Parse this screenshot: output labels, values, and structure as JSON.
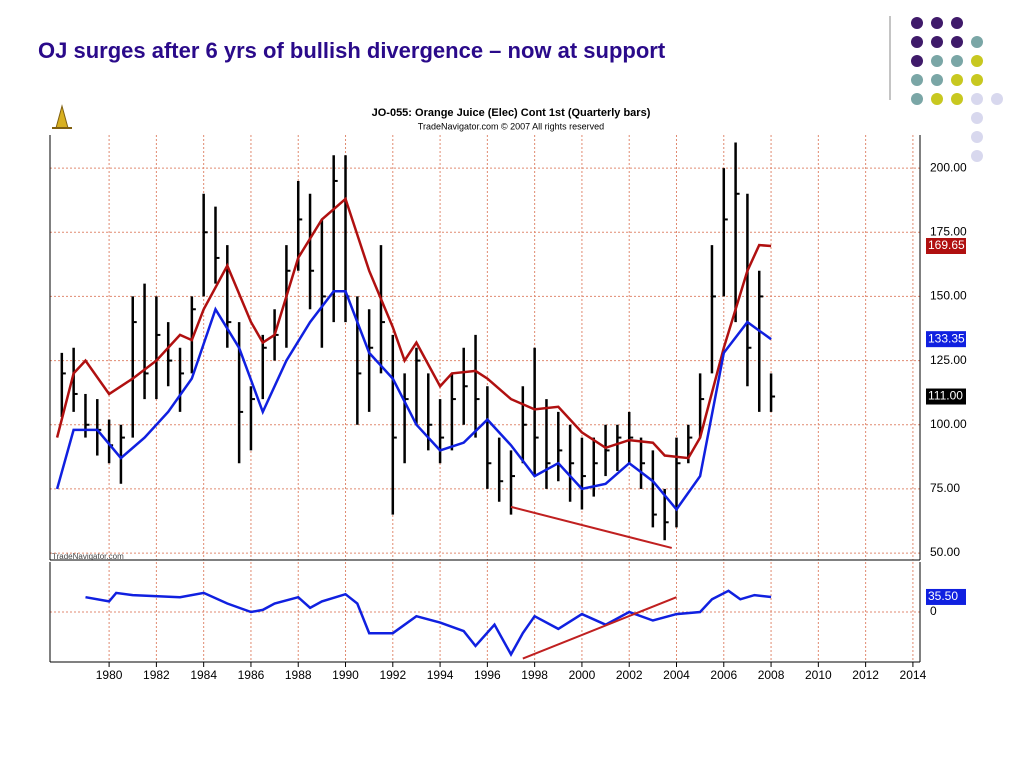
{
  "slide": {
    "title": "OJ surges after 6 yrs of bullish divergence – now at support"
  },
  "chart_data": [
    {
      "type": "ohlc",
      "title": "JO-055:  Orange Juice (Elec) Cont 1st  (Quarterly bars)",
      "subtitle": "TradeNavigator.com © 2007 All rights reserved",
      "watermark": "TradeNavigator.com",
      "xlim": [
        1977.5,
        2014.3
      ],
      "xticks": [
        1980,
        1982,
        1984,
        1986,
        1988,
        1990,
        1992,
        1994,
        1996,
        1998,
        2000,
        2002,
        2004,
        2006,
        2008,
        2010,
        2012,
        2014
      ],
      "ylim": [
        47.3,
        212.9
      ],
      "yticks": [
        {
          "value": 50,
          "label": "50.00"
        },
        {
          "value": 75,
          "label": "75.00"
        },
        {
          "value": 100,
          "label": "100.00"
        },
        {
          "value": 125,
          "label": "125.00"
        },
        {
          "value": 150,
          "label": "150.00"
        },
        {
          "value": 175,
          "label": "175.00"
        },
        {
          "value": 200,
          "label": "200.00"
        }
      ],
      "grid": true,
      "bars": {
        "color": "#000000",
        "x": [
          1978.0,
          1978.5,
          1979.0,
          1979.5,
          1980.0,
          1980.5,
          1981.0,
          1981.5,
          1982.0,
          1982.5,
          1983.0,
          1983.5,
          1984.0,
          1984.5,
          1985.0,
          1985.5,
          1986.0,
          1986.5,
          1987.0,
          1987.5,
          1988.0,
          1988.5,
          1989.0,
          1989.5,
          1990.0,
          1990.5,
          1991.0,
          1991.5,
          1992.0,
          1992.5,
          1993.0,
          1993.5,
          1994.0,
          1994.5,
          1995.0,
          1995.5,
          1996.0,
          1996.5,
          1997.0,
          1997.5,
          1998.0,
          1998.5,
          1999.0,
          1999.5,
          2000.0,
          2000.5,
          2001.0,
          2001.5,
          2002.0,
          2002.5,
          2003.0,
          2003.5,
          2004.0,
          2004.5,
          2005.0,
          2005.5,
          2006.0,
          2006.5,
          2007.0,
          2007.5,
          2008.0
        ],
        "high": [
          128,
          130,
          112,
          110,
          102,
          100,
          150,
          155,
          150,
          140,
          130,
          150,
          190,
          185,
          170,
          140,
          115,
          135,
          145,
          170,
          195,
          190,
          180,
          205,
          205,
          150,
          145,
          170,
          135,
          120,
          130,
          120,
          110,
          120,
          130,
          135,
          115,
          95,
          90,
          115,
          130,
          110,
          105,
          100,
          95,
          95,
          100,
          100,
          105,
          95,
          90,
          75,
          95,
          100,
          120,
          170,
          200,
          210,
          190,
          160,
          120
        ],
        "low": [
          103,
          105,
          95,
          88,
          85,
          77,
          95,
          110,
          110,
          115,
          105,
          120,
          150,
          155,
          130,
          85,
          90,
          110,
          125,
          130,
          160,
          145,
          130,
          140,
          140,
          100,
          105,
          120,
          65,
          85,
          100,
          90,
          85,
          90,
          100,
          95,
          75,
          70,
          65,
          85,
          80,
          75,
          78,
          70,
          67,
          72,
          80,
          82,
          85,
          75,
          60,
          55,
          60,
          85,
          95,
          120,
          150,
          140,
          115,
          105,
          105
        ],
        "close": [
          120,
          112,
          100,
          98,
          92,
          95,
          140,
          120,
          135,
          125,
          120,
          145,
          175,
          165,
          140,
          105,
          110,
          130,
          135,
          160,
          180,
          160,
          150,
          195,
          150,
          120,
          130,
          140,
          95,
          110,
          125,
          100,
          95,
          110,
          115,
          110,
          85,
          78,
          80,
          100,
          95,
          85,
          90,
          85,
          80,
          85,
          90,
          95,
          95,
          85,
          65,
          62,
          85,
          95,
          110,
          150,
          180,
          190,
          130,
          150,
          111
        ]
      },
      "series": [
        {
          "name": "Red MA",
          "color": "#b01010",
          "x": [
            1977.8,
            1978.5,
            1979,
            1980,
            1981,
            1982,
            1983,
            1983.5,
            1984,
            1985,
            1986,
            1986.5,
            1987,
            1988,
            1989,
            1990,
            1991,
            1992,
            1992.5,
            1993,
            1994,
            1994.5,
            1995.5,
            1996,
            1997,
            1998,
            1999,
            2000,
            2001,
            2002,
            2003,
            2003.5,
            2004.5,
            2005,
            2006,
            2007,
            2007.5,
            2008
          ],
          "values": [
            95,
            120,
            125,
            112,
            118,
            125,
            135,
            133,
            145,
            162,
            140,
            132,
            135,
            165,
            180,
            188,
            160,
            138,
            125,
            132,
            115,
            120,
            121,
            118,
            110,
            106,
            107,
            97,
            91,
            94,
            93,
            88,
            87,
            95,
            130,
            160,
            170,
            169.65
          ]
        },
        {
          "name": "Blue MA",
          "color": "#1020e0",
          "x": [
            1977.8,
            1978.5,
            1979.5,
            1980.5,
            1981.5,
            1982.5,
            1983.5,
            1984.5,
            1985.5,
            1986.5,
            1987.5,
            1988.5,
            1989.5,
            1990,
            1991,
            1992,
            1993,
            1994,
            1995,
            1996,
            1997,
            1998,
            1999,
            2000,
            2001,
            2002,
            2003,
            2004,
            2005,
            2006,
            2007,
            2008
          ],
          "values": [
            75,
            98,
            98,
            87,
            95,
            105,
            118,
            145,
            130,
            105,
            125,
            140,
            152,
            152,
            128,
            118,
            100,
            90,
            93,
            102,
            92,
            80,
            85,
            75,
            77,
            85,
            78,
            67,
            80,
            128,
            140,
            133.35
          ]
        }
      ],
      "annotations": [
        {
          "label": "169.65",
          "y": 169.65,
          "color": "#b01010"
        },
        {
          "label": "133.35",
          "y": 133.35,
          "color": "#1020e0"
        },
        {
          "label": "111.00",
          "y": 111,
          "color": "#000000"
        }
      ],
      "trend_lines": [
        {
          "x": [
            1997,
            2003.8
          ],
          "y": [
            68,
            52
          ],
          "color": "#c02020"
        }
      ]
    },
    {
      "type": "line",
      "xlim": [
        1977.5,
        2014.3
      ],
      "ylim": [
        -118,
        118
      ],
      "yticks": [
        0
      ],
      "grid": true,
      "series": [
        {
          "name": "Indicator",
          "color": "#1020e0",
          "x": [
            1979,
            1980,
            1980.3,
            1981,
            1983,
            1984,
            1985,
            1986,
            1986.5,
            1987,
            1988,
            1988.5,
            1989,
            1990,
            1990.5,
            1991,
            1992,
            1993,
            1994,
            1995,
            1995.5,
            1996.3,
            1997,
            1997.5,
            1998,
            1999,
            2000,
            2001,
            2002,
            2003,
            2004,
            2005,
            2005.5,
            2006.2,
            2006.7,
            2007.3,
            2008
          ],
          "values": [
            35,
            25,
            45,
            40,
            35,
            45,
            20,
            0,
            5,
            20,
            35,
            10,
            25,
            42,
            20,
            -50,
            -50,
            -10,
            -25,
            -45,
            -80,
            -30,
            -100,
            -50,
            -10,
            -40,
            -5,
            -30,
            0,
            -20,
            -5,
            0,
            30,
            50,
            30,
            40,
            35.5
          ]
        }
      ],
      "annotations": [
        {
          "label": "35.50",
          "y": 35.5,
          "color": "#1020e0"
        }
      ],
      "trend_lines": [
        {
          "x": [
            1997.5,
            2004
          ],
          "y": [
            -110,
            35
          ],
          "color": "#c02020"
        }
      ]
    }
  ]
}
